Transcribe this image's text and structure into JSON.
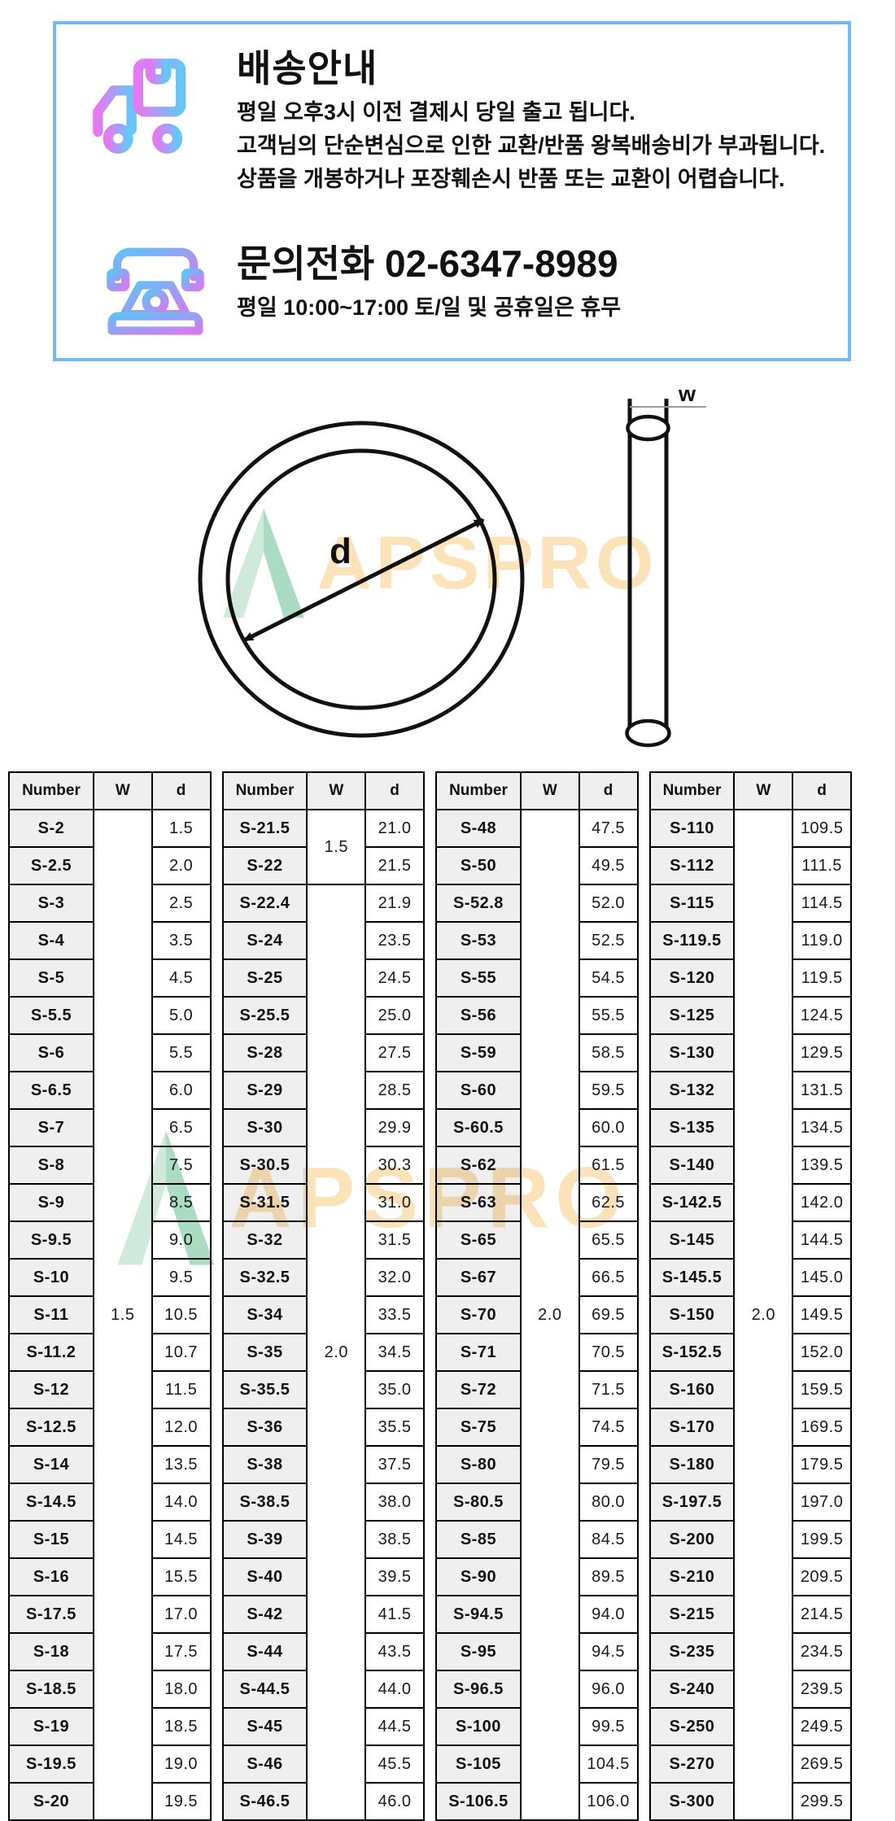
{
  "info_box": {
    "shipping": {
      "title": "배송안내",
      "lines": [
        "평일 오후3시 이전 결제시 당일 출고 됩니다.",
        "고객님의 단순변심으로 인한 교환/반품 왕복배송비가 부과됩니다.",
        "상품을 개봉하거나 포장훼손시 반품 또는 교환이 어렵습니다."
      ]
    },
    "contact": {
      "title": "문의전화  02-6347-8989",
      "hours": "평일 10:00~17:00 토/일 및 공휴일은 휴무"
    }
  },
  "diagram": {
    "d_label": "d",
    "w_label": "w",
    "watermark_text": "APSPRO"
  },
  "colors": {
    "box_border": "#74b9f2",
    "truck_gradient": [
      "#e479f2",
      "#66c6f8"
    ],
    "phone_gradient": [
      "#5fc3f4",
      "#d47af2"
    ],
    "watermark_orange": "#fbe2b8",
    "watermark_green_light": "#cfe9da",
    "watermark_green_dark": "#a9dcc3",
    "table_header_bg": "#efefef",
    "line_black": "#111111"
  },
  "tables": {
    "headers": [
      "Number",
      "W",
      "d"
    ],
    "groups": [
      {
        "w_spans": [
          {
            "value": "1.5",
            "span": 27
          }
        ],
        "rows": [
          {
            "number": "S-2",
            "d": "1.5"
          },
          {
            "number": "S-2.5",
            "d": "2.0"
          },
          {
            "number": "S-3",
            "d": "2.5"
          },
          {
            "number": "S-4",
            "d": "3.5"
          },
          {
            "number": "S-5",
            "d": "4.5"
          },
          {
            "number": "S-5.5",
            "d": "5.0"
          },
          {
            "number": "S-6",
            "d": "5.5"
          },
          {
            "number": "S-6.5",
            "d": "6.0"
          },
          {
            "number": "S-7",
            "d": "6.5"
          },
          {
            "number": "S-8",
            "d": "7.5"
          },
          {
            "number": "S-9",
            "d": "8.5"
          },
          {
            "number": "S-9.5",
            "d": "9.0"
          },
          {
            "number": "S-10",
            "d": "9.5"
          },
          {
            "number": "S-11",
            "d": "10.5"
          },
          {
            "number": "S-11.2",
            "d": "10.7"
          },
          {
            "number": "S-12",
            "d": "11.5"
          },
          {
            "number": "S-12.5",
            "d": "12.0"
          },
          {
            "number": "S-14",
            "d": "13.5"
          },
          {
            "number": "S-14.5",
            "d": "14.0"
          },
          {
            "number": "S-15",
            "d": "14.5"
          },
          {
            "number": "S-16",
            "d": "15.5"
          },
          {
            "number": "S-17.5",
            "d": "17.0"
          },
          {
            "number": "S-18",
            "d": "17.5"
          },
          {
            "number": "S-18.5",
            "d": "18.0"
          },
          {
            "number": "S-19",
            "d": "18.5"
          },
          {
            "number": "S-19.5",
            "d": "19.0"
          },
          {
            "number": "S-20",
            "d": "19.5"
          }
        ]
      },
      {
        "w_spans": [
          {
            "value": "1.5",
            "span": 2
          },
          {
            "value": "2.0",
            "span": 25
          }
        ],
        "rows": [
          {
            "number": "S-21.5",
            "d": "21.0"
          },
          {
            "number": "S-22",
            "d": "21.5"
          },
          {
            "number": "S-22.4",
            "d": "21.9"
          },
          {
            "number": "S-24",
            "d": "23.5"
          },
          {
            "number": "S-25",
            "d": "24.5"
          },
          {
            "number": "S-25.5",
            "d": "25.0"
          },
          {
            "number": "S-28",
            "d": "27.5"
          },
          {
            "number": "S-29",
            "d": "28.5"
          },
          {
            "number": "S-30",
            "d": "29.9"
          },
          {
            "number": "S-30.5",
            "d": "30.3"
          },
          {
            "number": "S-31.5",
            "d": "31.0"
          },
          {
            "number": "S-32",
            "d": "31.5"
          },
          {
            "number": "S-32.5",
            "d": "32.0"
          },
          {
            "number": "S-34",
            "d": "33.5"
          },
          {
            "number": "S-35",
            "d": "34.5"
          },
          {
            "number": "S-35.5",
            "d": "35.0"
          },
          {
            "number": "S-36",
            "d": "35.5"
          },
          {
            "number": "S-38",
            "d": "37.5"
          },
          {
            "number": "S-38.5",
            "d": "38.0"
          },
          {
            "number": "S-39",
            "d": "38.5"
          },
          {
            "number": "S-40",
            "d": "39.5"
          },
          {
            "number": "S-42",
            "d": "41.5"
          },
          {
            "number": "S-44",
            "d": "43.5"
          },
          {
            "number": "S-44.5",
            "d": "44.0"
          },
          {
            "number": "S-45",
            "d": "44.5"
          },
          {
            "number": "S-46",
            "d": "45.5"
          },
          {
            "number": "S-46.5",
            "d": "46.0"
          }
        ]
      },
      {
        "w_spans": [
          {
            "value": "2.0",
            "span": 27
          }
        ],
        "rows": [
          {
            "number": "S-48",
            "d": "47.5"
          },
          {
            "number": "S-50",
            "d": "49.5"
          },
          {
            "number": "S-52.8",
            "d": "52.0"
          },
          {
            "number": "S-53",
            "d": "52.5"
          },
          {
            "number": "S-55",
            "d": "54.5"
          },
          {
            "number": "S-56",
            "d": "55.5"
          },
          {
            "number": "S-59",
            "d": "58.5"
          },
          {
            "number": "S-60",
            "d": "59.5"
          },
          {
            "number": "S-60.5",
            "d": "60.0"
          },
          {
            "number": "S-62",
            "d": "61.5"
          },
          {
            "number": "S-63",
            "d": "62.5"
          },
          {
            "number": "S-65",
            "d": "65.5"
          },
          {
            "number": "S-67",
            "d": "66.5"
          },
          {
            "number": "S-70",
            "d": "69.5"
          },
          {
            "number": "S-71",
            "d": "70.5"
          },
          {
            "number": "S-72",
            "d": "71.5"
          },
          {
            "number": "S-75",
            "d": "74.5"
          },
          {
            "number": "S-80",
            "d": "79.5"
          },
          {
            "number": "S-80.5",
            "d": "80.0"
          },
          {
            "number": "S-85",
            "d": "84.5"
          },
          {
            "number": "S-90",
            "d": "89.5"
          },
          {
            "number": "S-94.5",
            "d": "94.0"
          },
          {
            "number": "S-95",
            "d": "94.5"
          },
          {
            "number": "S-96.5",
            "d": "96.0"
          },
          {
            "number": "S-100",
            "d": "99.5"
          },
          {
            "number": "S-105",
            "d": "104.5"
          },
          {
            "number": "S-106.5",
            "d": "106.0"
          }
        ]
      },
      {
        "w_spans": [
          {
            "value": "2.0",
            "span": 27
          }
        ],
        "rows": [
          {
            "number": "S-110",
            "d": "109.5"
          },
          {
            "number": "S-112",
            "d": "111.5"
          },
          {
            "number": "S-115",
            "d": "114.5"
          },
          {
            "number": "S-119.5",
            "d": "119.0"
          },
          {
            "number": "S-120",
            "d": "119.5"
          },
          {
            "number": "S-125",
            "d": "124.5"
          },
          {
            "number": "S-130",
            "d": "129.5"
          },
          {
            "number": "S-132",
            "d": "131.5"
          },
          {
            "number": "S-135",
            "d": "134.5"
          },
          {
            "number": "S-140",
            "d": "139.5"
          },
          {
            "number": "S-142.5",
            "d": "142.0"
          },
          {
            "number": "S-145",
            "d": "144.5"
          },
          {
            "number": "S-145.5",
            "d": "145.0"
          },
          {
            "number": "S-150",
            "d": "149.5"
          },
          {
            "number": "S-152.5",
            "d": "152.0"
          },
          {
            "number": "S-160",
            "d": "159.5"
          },
          {
            "number": "S-170",
            "d": "169.5"
          },
          {
            "number": "S-180",
            "d": "179.5"
          },
          {
            "number": "S-197.5",
            "d": "197.0"
          },
          {
            "number": "S-200",
            "d": "199.5"
          },
          {
            "number": "S-210",
            "d": "209.5"
          },
          {
            "number": "S-215",
            "d": "214.5"
          },
          {
            "number": "S-235",
            "d": "234.5"
          },
          {
            "number": "S-240",
            "d": "239.5"
          },
          {
            "number": "S-250",
            "d": "249.5"
          },
          {
            "number": "S-270",
            "d": "269.5"
          },
          {
            "number": "S-300",
            "d": "299.5"
          }
        ]
      }
    ]
  }
}
